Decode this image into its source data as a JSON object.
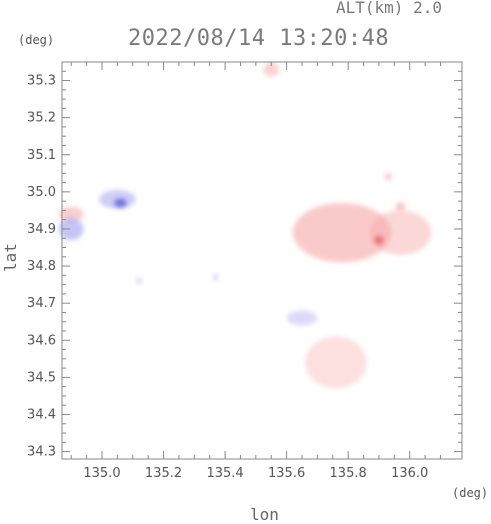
{
  "header": {
    "altitude_label": "ALT(km) 2.0",
    "datetime": "2022/08/14 13:20:48"
  },
  "chart_data": {
    "type": "heatmap",
    "title": "2022/08/14 13:20:48",
    "subtitle": "ALT(km) 2.0",
    "xlabel": "lon",
    "ylabel": "lat",
    "x_unit": "(deg)",
    "y_unit": "(deg)",
    "xlim": [
      134.87,
      136.17
    ],
    "ylim": [
      34.28,
      35.35
    ],
    "x_ticks": [
      135.0,
      135.2,
      135.4,
      135.6,
      135.8,
      136.0
    ],
    "x_tick_labels": [
      "135.0",
      "135.2",
      "135.4",
      "135.6",
      "135.8",
      "136.0"
    ],
    "y_ticks": [
      34.3,
      34.4,
      34.5,
      34.6,
      34.7,
      34.8,
      34.9,
      35.0,
      35.1,
      35.2,
      35.3
    ],
    "y_tick_labels": [
      "34.3",
      "34.4",
      "34.5",
      "34.6",
      "34.7",
      "34.8",
      "34.9",
      "35.0",
      "35.1",
      "35.2",
      "35.3"
    ],
    "grid": false,
    "colors": {
      "positive": "#f6a6a6",
      "positive_strong": "#e86a6a",
      "negative": "#a6a6f0",
      "negative_strong": "#5a5ad8"
    },
    "regions": [
      {
        "sign": "positive",
        "lon": 135.55,
        "lat": 35.33,
        "rlon": 0.025,
        "rlat": 0.02,
        "intensity": 0.5
      },
      {
        "sign": "positive",
        "lon": 135.78,
        "lat": 34.89,
        "rlon": 0.16,
        "rlat": 0.08,
        "intensity": 0.6
      },
      {
        "sign": "positive",
        "lon": 135.97,
        "lat": 34.89,
        "rlon": 0.1,
        "rlat": 0.06,
        "intensity": 0.45
      },
      {
        "sign": "positive_strong",
        "lon": 135.9,
        "lat": 34.87,
        "rlon": 0.015,
        "rlat": 0.012,
        "intensity": 0.9
      },
      {
        "sign": "positive",
        "lon": 135.97,
        "lat": 34.96,
        "rlon": 0.015,
        "rlat": 0.012,
        "intensity": 0.7
      },
      {
        "sign": "positive",
        "lon": 135.93,
        "lat": 35.04,
        "rlon": 0.01,
        "rlat": 0.01,
        "intensity": 0.7
      },
      {
        "sign": "positive",
        "lon": 135.76,
        "lat": 34.54,
        "rlon": 0.1,
        "rlat": 0.07,
        "intensity": 0.35
      },
      {
        "sign": "positive",
        "lon": 134.9,
        "lat": 34.94,
        "rlon": 0.04,
        "rlat": 0.02,
        "intensity": 0.55
      },
      {
        "sign": "negative",
        "lon": 134.9,
        "lat": 34.9,
        "rlon": 0.04,
        "rlat": 0.03,
        "intensity": 0.65
      },
      {
        "sign": "negative",
        "lon": 135.05,
        "lat": 34.98,
        "rlon": 0.06,
        "rlat": 0.025,
        "intensity": 0.55
      },
      {
        "sign": "negative_strong",
        "lon": 135.06,
        "lat": 34.97,
        "rlon": 0.02,
        "rlat": 0.012,
        "intensity": 0.8
      },
      {
        "sign": "negative",
        "lon": 135.65,
        "lat": 34.66,
        "rlon": 0.05,
        "rlat": 0.02,
        "intensity": 0.4
      },
      {
        "sign": "negative",
        "lon": 135.37,
        "lat": 34.77,
        "rlon": 0.008,
        "rlat": 0.008,
        "intensity": 0.6
      },
      {
        "sign": "negative",
        "lon": 135.12,
        "lat": 34.76,
        "rlon": 0.008,
        "rlat": 0.008,
        "intensity": 0.6
      }
    ]
  }
}
